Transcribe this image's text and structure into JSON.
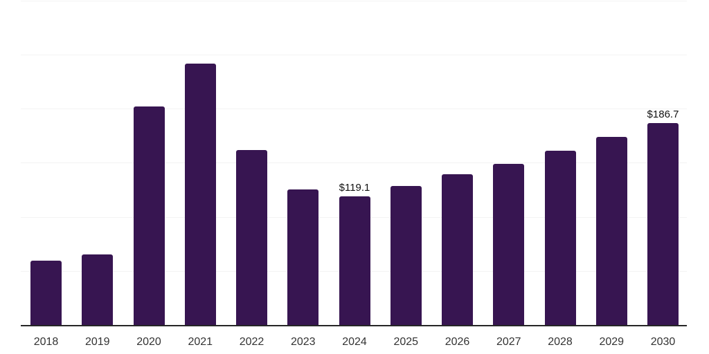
{
  "chart_data": {
    "type": "bar",
    "title": "",
    "xlabel": "",
    "ylabel": "",
    "categories": [
      "2018",
      "2019",
      "2020",
      "2021",
      "2022",
      "2023",
      "2024",
      "2025",
      "2026",
      "2027",
      "2028",
      "2029",
      "2030"
    ],
    "values": [
      59.2,
      65.3,
      201.6,
      241.4,
      161.4,
      125.5,
      119.1,
      128.5,
      139.0,
      149.2,
      161.0,
      174.0,
      186.7
    ],
    "data_labels": [
      null,
      null,
      null,
      null,
      null,
      null,
      "$119.1",
      null,
      null,
      null,
      null,
      null,
      "$186.7"
    ],
    "ylim": [
      0,
      300
    ],
    "gridline_interval": 50,
    "grid": true,
    "legend": false,
    "y_axis_tick_labels_visible": false,
    "colors": {
      "background": "#ffffff",
      "bar": "#371551",
      "gridline": "#f3f3f3",
      "axis_line": "#262626",
      "tick_label": "#333333",
      "data_label": "#111111"
    }
  }
}
